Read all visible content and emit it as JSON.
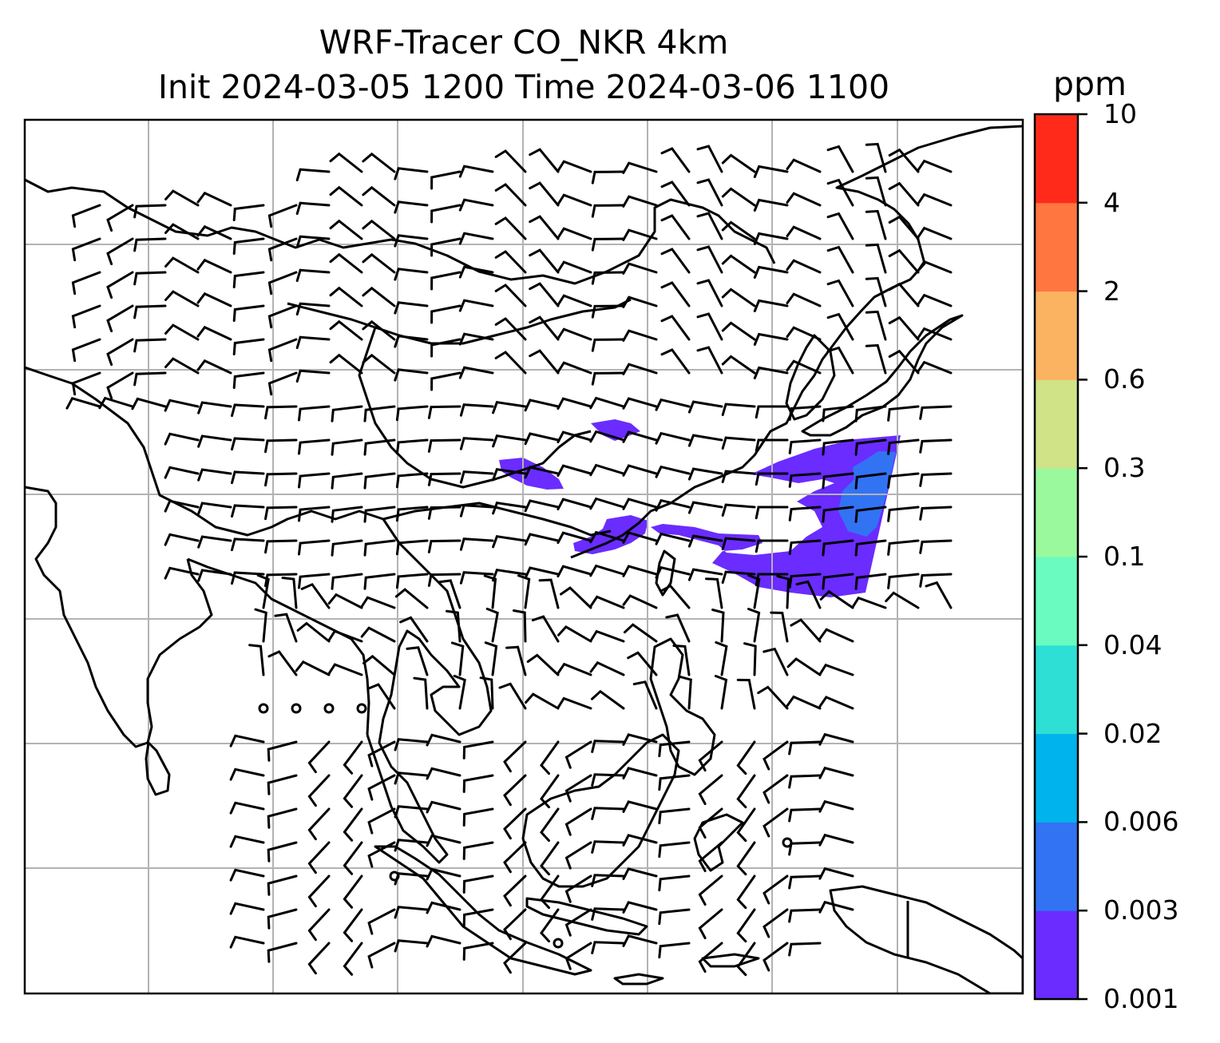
{
  "title": {
    "line1": "WRF-Tracer CO_NKR 4km",
    "line2": "Init 2024-03-05 1200 Time 2024-03-06 1100"
  },
  "colorbar": {
    "unit": "ppm",
    "levels": [
      "0.001",
      "0.003",
      "0.006",
      "0.02",
      "0.04",
      "0.1",
      "0.3",
      "0.6",
      "2",
      "4",
      "10"
    ],
    "colors": [
      "#6a2cff",
      "#3273f4",
      "#00b3ec",
      "#2edfd5",
      "#69fbc0",
      "#9bf99d",
      "#d0e387",
      "#fbb362",
      "#ff7641",
      "#ff2a1a"
    ]
  },
  "map": {
    "coastline_color": "#000000",
    "gridline_color": "#b3b3b3",
    "barb_color": "#000000",
    "tracer_colors": [
      "#6a2cff",
      "#3273f4"
    ]
  }
}
